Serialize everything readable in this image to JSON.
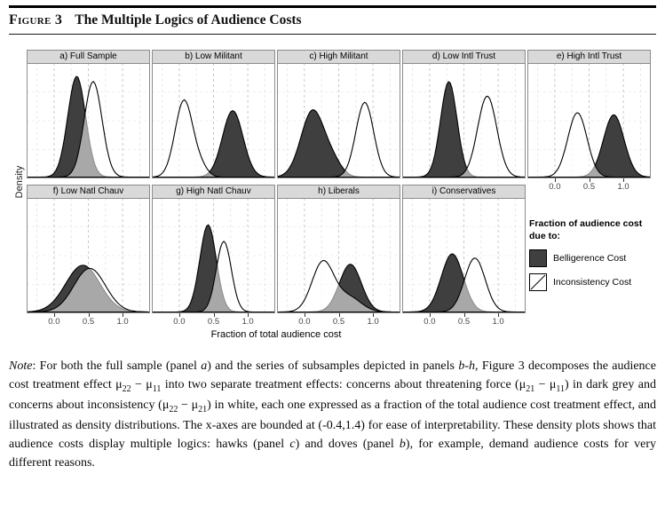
{
  "header": {
    "figure_label": "Figure 3",
    "title": "The Multiple Logics of Audience Costs"
  },
  "chart_data": {
    "type": "area",
    "subtype": "density",
    "x_domain": [
      -0.4,
      1.4
    ],
    "x_ticks": [
      0.0,
      0.5,
      1.0
    ],
    "x_tick_labels": [
      "0.0",
      "0.5",
      "1.0"
    ],
    "xlabel": "Fraction of total audience cost",
    "ylabel": "Density",
    "grid": {
      "major_x": [
        0.0,
        0.5,
        1.0
      ],
      "minor_x": [
        -0.25,
        0.25,
        0.75,
        1.25
      ],
      "dashed": true
    },
    "series_colors": {
      "belligerence_fill": "#3f3f3f",
      "inconsistency_fill": "rgba(255,255,255,0.55)",
      "outline": "#000000",
      "strip_bg": "#d9d9d9",
      "panel_border": "#8c8c8c"
    },
    "legend": {
      "title": "Fraction of audience cost due to:",
      "entries": [
        {
          "label": "Belligerence Cost",
          "fill": "#3f3f3f"
        },
        {
          "label": "Inconsistency Cost",
          "fill": "#ffffff"
        }
      ]
    },
    "panels": [
      {
        "id": "a",
        "label": "a) Full Sample",
        "belligerence": [
          {
            "mu": 0.33,
            "sigma": 0.13,
            "peak": 0.97
          }
        ],
        "inconsistency": [
          {
            "mu": 0.57,
            "sigma": 0.13,
            "peak": 0.92
          }
        ]
      },
      {
        "id": "b",
        "label": "b) Low Militant",
        "belligerence": [
          {
            "mu": 0.78,
            "sigma": 0.15,
            "peak": 0.64
          }
        ],
        "inconsistency": [
          {
            "mu": 0.07,
            "sigma": 0.13,
            "peak": 0.74
          },
          {
            "mu": 0.32,
            "sigma": 0.1,
            "peak": 0.08
          }
        ]
      },
      {
        "id": "c",
        "label": "c) High Militant",
        "belligerence": [
          {
            "mu": 0.12,
            "sigma": 0.17,
            "peak": 0.64
          },
          {
            "mu": 0.42,
            "sigma": 0.13,
            "peak": 0.12
          }
        ],
        "inconsistency": [
          {
            "mu": 0.88,
            "sigma": 0.13,
            "peak": 0.72
          }
        ]
      },
      {
        "id": "d",
        "label": "d) Low Intl Trust",
        "belligerence": [
          {
            "mu": 0.28,
            "sigma": 0.12,
            "peak": 0.92
          }
        ],
        "inconsistency": [
          {
            "mu": 0.84,
            "sigma": 0.14,
            "peak": 0.78
          }
        ]
      },
      {
        "id": "e",
        "label": "e) High Intl Trust",
        "belligerence": [
          {
            "mu": 0.86,
            "sigma": 0.15,
            "peak": 0.6
          }
        ],
        "inconsistency": [
          {
            "mu": 0.33,
            "sigma": 0.14,
            "peak": 0.62
          }
        ]
      },
      {
        "id": "f",
        "label": "f) Low Natl Chauv",
        "belligerence": [
          {
            "mu": 0.42,
            "sigma": 0.25,
            "peak": 0.45
          }
        ],
        "inconsistency": [
          {
            "mu": 0.52,
            "sigma": 0.23,
            "peak": 0.42
          }
        ]
      },
      {
        "id": "g",
        "label": "g) High Natl Chauv",
        "belligerence": [
          {
            "mu": 0.42,
            "sigma": 0.12,
            "peak": 0.84
          }
        ],
        "inconsistency": [
          {
            "mu": 0.65,
            "sigma": 0.11,
            "peak": 0.68
          }
        ]
      },
      {
        "id": "h",
        "label": "h) Liberals",
        "belligerence": [
          {
            "mu": 0.67,
            "sigma": 0.16,
            "peak": 0.46
          }
        ],
        "inconsistency": [
          {
            "mu": 0.27,
            "sigma": 0.16,
            "peak": 0.48
          },
          {
            "mu": 0.65,
            "sigma": 0.18,
            "peak": 0.14
          }
        ]
      },
      {
        "id": "i",
        "label": "i) Conservatives",
        "belligerence": [
          {
            "mu": 0.33,
            "sigma": 0.16,
            "peak": 0.56
          }
        ],
        "inconsistency": [
          {
            "mu": 0.66,
            "sigma": 0.15,
            "peak": 0.52
          }
        ]
      }
    ]
  },
  "note": {
    "segments": [
      {
        "t": "Note",
        "italic": true
      },
      {
        "t": ": For both the full sample (panel "
      },
      {
        "t": "a",
        "italic": true
      },
      {
        "t": ") and the series of subsamples depicted in panels "
      },
      {
        "t": "b-h",
        "italic": true
      },
      {
        "t": ", Figure 3 decomposes the audience cost treatment effect "
      },
      {
        "t": "μ"
      },
      {
        "t": "22",
        "sub": true
      },
      {
        "t": " − "
      },
      {
        "t": "μ"
      },
      {
        "t": "11",
        "sub": true
      },
      {
        "t": " into two separate treatment effects: concerns about threatening force ("
      },
      {
        "t": "μ"
      },
      {
        "t": "21",
        "sub": true
      },
      {
        "t": " − "
      },
      {
        "t": "μ"
      },
      {
        "t": "11",
        "sub": true
      },
      {
        "t": ") in dark grey and concerns about inconsistency ("
      },
      {
        "t": "μ"
      },
      {
        "t": "22",
        "sub": true
      },
      {
        "t": " − "
      },
      {
        "t": "μ"
      },
      {
        "t": "21",
        "sub": true
      },
      {
        "t": ") in white, each one expressed as a fraction of the total audience cost treatment effect, and illustrated as density distributions. The x-axes are bounded at (-0.4,1.4) for ease of interpretability. These density plots shows that audience costs display multiple logics: hawks (panel "
      },
      {
        "t": "c",
        "italic": true
      },
      {
        "t": ") and doves (panel "
      },
      {
        "t": "b",
        "italic": true
      },
      {
        "t": "), for example, demand audience costs for very different reasons."
      }
    ]
  }
}
